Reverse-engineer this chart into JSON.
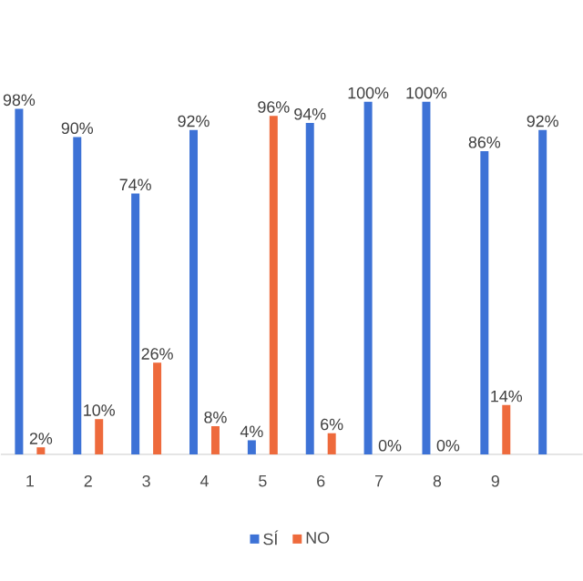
{
  "chart_data": {
    "type": "bar",
    "categories": [
      "1",
      "2",
      "3",
      "4",
      "5",
      "6",
      "7",
      "8",
      "9",
      null
    ],
    "series": [
      {
        "name": "SÍ",
        "color": "#3d72d6",
        "values": [
          98,
          90,
          74,
          92,
          4,
          94,
          100,
          100,
          86,
          92
        ],
        "value_labels": [
          "98%",
          "90%",
          "74%",
          "92%",
          "4%",
          "94%",
          "100%",
          "100%",
          "86%",
          "92%"
        ]
      },
      {
        "name": "NO",
        "color": "#ee6a3c",
        "values": [
          2,
          10,
          26,
          8,
          96,
          6,
          0,
          0,
          14,
          null
        ],
        "value_labels": [
          "2%",
          "10%",
          "26%",
          "8%",
          "96%",
          "6%",
          "0%",
          "0%",
          "14%",
          null
        ]
      }
    ],
    "ylim": [
      0,
      100
    ],
    "legend": "bottom"
  }
}
